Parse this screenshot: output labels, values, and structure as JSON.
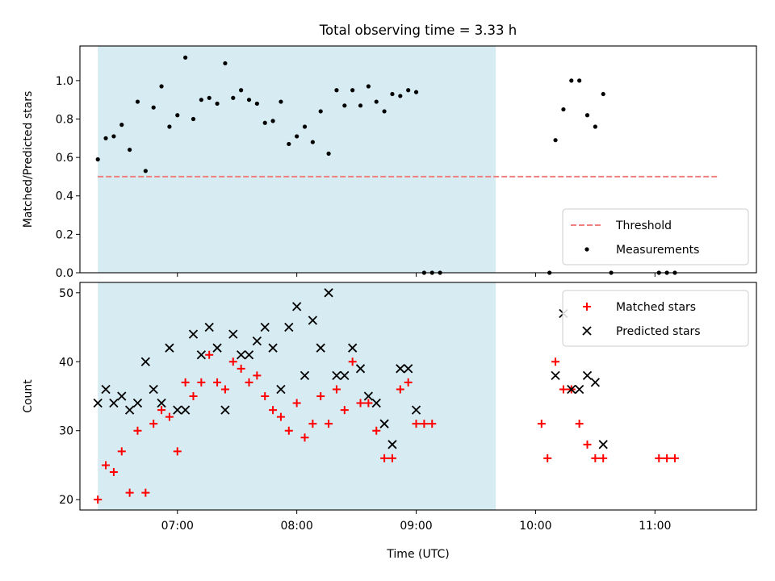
{
  "figure": {
    "title": "Total observing time = 3.33 h"
  },
  "colors": {
    "shade": "#add8e6",
    "threshold": "#f08080",
    "measurement": "#000000",
    "matched": "#ff0000",
    "predicted": "#000000"
  },
  "chart_data": [
    {
      "type": "scatter",
      "ylabel": "Matched/Predicted stars",
      "xlabel": "",
      "ylim": [
        0,
        1.18
      ],
      "xlim": [
        "06:11",
        "11:51"
      ],
      "y_ticks": [
        "0.0",
        "0.2",
        "0.4",
        "0.6",
        "0.8",
        "1.0"
      ],
      "shaded_region": {
        "start": "06:20",
        "end": "09:40"
      },
      "threshold": {
        "name": "Threshold",
        "value": 0.5,
        "start": "06:20",
        "end": "11:32"
      },
      "legend": {
        "placement": "lower-right",
        "entries": [
          "Threshold",
          "Measurements"
        ]
      },
      "series": [
        {
          "name": "Measurements",
          "points": [
            [
              "06:20",
              0.59
            ],
            [
              "06:24",
              0.7
            ],
            [
              "06:28",
              0.71
            ],
            [
              "06:32",
              0.77
            ],
            [
              "06:36",
              0.64
            ],
            [
              "06:40",
              0.89
            ],
            [
              "06:44",
              0.53
            ],
            [
              "06:48",
              0.86
            ],
            [
              "06:52",
              0.97
            ],
            [
              "06:56",
              0.76
            ],
            [
              "07:00",
              0.82
            ],
            [
              "07:04",
              1.12
            ],
            [
              "07:08",
              0.8
            ],
            [
              "07:12",
              0.9
            ],
            [
              "07:16",
              0.91
            ],
            [
              "07:20",
              0.88
            ],
            [
              "07:24",
              1.09
            ],
            [
              "07:28",
              0.91
            ],
            [
              "07:32",
              0.95
            ],
            [
              "07:36",
              0.9
            ],
            [
              "07:40",
              0.88
            ],
            [
              "07:44",
              0.78
            ],
            [
              "07:48",
              0.79
            ],
            [
              "07:52",
              0.89
            ],
            [
              "07:56",
              0.67
            ],
            [
              "08:00",
              0.71
            ],
            [
              "08:04",
              0.76
            ],
            [
              "08:08",
              0.68
            ],
            [
              "08:12",
              0.84
            ],
            [
              "08:16",
              0.62
            ],
            [
              "08:20",
              0.95
            ],
            [
              "08:24",
              0.87
            ],
            [
              "08:28",
              0.95
            ],
            [
              "08:32",
              0.87
            ],
            [
              "08:36",
              0.97
            ],
            [
              "08:40",
              0.89
            ],
            [
              "08:44",
              0.84
            ],
            [
              "08:48",
              0.93
            ],
            [
              "08:52",
              0.92
            ],
            [
              "08:56",
              0.95
            ],
            [
              "09:00",
              0.94
            ],
            [
              "09:04",
              0.0
            ],
            [
              "09:08",
              0.0
            ],
            [
              "09:12",
              0.0
            ],
            [
              "10:07",
              0.0
            ],
            [
              "10:10",
              0.69
            ],
            [
              "10:14",
              0.85
            ],
            [
              "10:18",
              1.0
            ],
            [
              "10:22",
              1.0
            ],
            [
              "10:26",
              0.82
            ],
            [
              "10:30",
              0.76
            ],
            [
              "10:34",
              0.93
            ],
            [
              "10:38",
              0.0
            ],
            [
              "11:02",
              0.0
            ],
            [
              "11:06",
              0.0
            ],
            [
              "11:10",
              0.0
            ]
          ]
        }
      ]
    },
    {
      "type": "scatter",
      "ylabel": "Count",
      "xlabel": "Time (UTC)",
      "ylim": [
        18.5,
        51.5
      ],
      "xlim": [
        "06:11",
        "11:51"
      ],
      "y_ticks": [
        "20",
        "30",
        "40",
        "50"
      ],
      "x_ticks": [
        "07:00",
        "08:00",
        "09:00",
        "10:00",
        "11:00"
      ],
      "shaded_region": {
        "start": "06:20",
        "end": "09:40"
      },
      "legend": {
        "placement": "upper-right",
        "entries": [
          "Matched stars",
          "Predicted stars"
        ]
      },
      "series": [
        {
          "name": "Matched stars",
          "points": [
            [
              "06:20",
              20
            ],
            [
              "06:24",
              25
            ],
            [
              "06:28",
              24
            ],
            [
              "06:32",
              27
            ],
            [
              "06:36",
              21
            ],
            [
              "06:40",
              30
            ],
            [
              "06:44",
              21
            ],
            [
              "06:48",
              31
            ],
            [
              "06:52",
              33
            ],
            [
              "06:56",
              32
            ],
            [
              "07:00",
              27
            ],
            [
              "07:04",
              37
            ],
            [
              "07:08",
              35
            ],
            [
              "07:12",
              37
            ],
            [
              "07:16",
              41
            ],
            [
              "07:20",
              37
            ],
            [
              "07:24",
              36
            ],
            [
              "07:28",
              40
            ],
            [
              "07:32",
              39
            ],
            [
              "07:36",
              37
            ],
            [
              "07:40",
              38
            ],
            [
              "07:44",
              35
            ],
            [
              "07:48",
              33
            ],
            [
              "07:52",
              32
            ],
            [
              "07:56",
              30
            ],
            [
              "08:00",
              34
            ],
            [
              "08:04",
              29
            ],
            [
              "08:08",
              31
            ],
            [
              "08:12",
              35
            ],
            [
              "08:16",
              31
            ],
            [
              "08:20",
              36
            ],
            [
              "08:24",
              33
            ],
            [
              "08:28",
              40
            ],
            [
              "08:32",
              34
            ],
            [
              "08:36",
              34
            ],
            [
              "08:40",
              30
            ],
            [
              "08:44",
              26
            ],
            [
              "08:48",
              26
            ],
            [
              "08:52",
              36
            ],
            [
              "08:56",
              37
            ],
            [
              "09:00",
              31
            ],
            [
              "09:04",
              31
            ],
            [
              "09:08",
              31
            ],
            [
              "10:03",
              31
            ],
            [
              "10:06",
              26
            ],
            [
              "10:10",
              40
            ],
            [
              "10:14",
              36
            ],
            [
              "10:18",
              36
            ],
            [
              "10:22",
              31
            ],
            [
              "10:26",
              28
            ],
            [
              "10:30",
              26
            ],
            [
              "10:34",
              26
            ],
            [
              "11:02",
              26
            ],
            [
              "11:06",
              26
            ],
            [
              "11:10",
              26
            ]
          ]
        },
        {
          "name": "Predicted stars",
          "points": [
            [
              "06:20",
              34
            ],
            [
              "06:24",
              36
            ],
            [
              "06:28",
              34
            ],
            [
              "06:32",
              35
            ],
            [
              "06:36",
              33
            ],
            [
              "06:40",
              34
            ],
            [
              "06:44",
              40
            ],
            [
              "06:48",
              36
            ],
            [
              "06:52",
              34
            ],
            [
              "06:56",
              42
            ],
            [
              "07:00",
              33
            ],
            [
              "07:04",
              33
            ],
            [
              "07:08",
              44
            ],
            [
              "07:12",
              41
            ],
            [
              "07:16",
              45
            ],
            [
              "07:20",
              42
            ],
            [
              "07:24",
              33
            ],
            [
              "07:28",
              44
            ],
            [
              "07:32",
              41
            ],
            [
              "07:36",
              41
            ],
            [
              "07:40",
              43
            ],
            [
              "07:44",
              45
            ],
            [
              "07:48",
              42
            ],
            [
              "07:52",
              36
            ],
            [
              "07:56",
              45
            ],
            [
              "08:00",
              48
            ],
            [
              "08:04",
              38
            ],
            [
              "08:08",
              46
            ],
            [
              "08:12",
              42
            ],
            [
              "08:16",
              50
            ],
            [
              "08:20",
              38
            ],
            [
              "08:24",
              38
            ],
            [
              "08:28",
              42
            ],
            [
              "08:32",
              39
            ],
            [
              "08:36",
              35
            ],
            [
              "08:40",
              34
            ],
            [
              "08:44",
              31
            ],
            [
              "08:48",
              28
            ],
            [
              "08:52",
              39
            ],
            [
              "08:56",
              39
            ],
            [
              "09:00",
              33
            ],
            [
              "10:10",
              38
            ],
            [
              "10:14",
              47
            ],
            [
              "10:18",
              36
            ],
            [
              "10:22",
              36
            ],
            [
              "10:26",
              38
            ],
            [
              "10:30",
              37
            ],
            [
              "10:34",
              28
            ]
          ]
        }
      ]
    }
  ]
}
